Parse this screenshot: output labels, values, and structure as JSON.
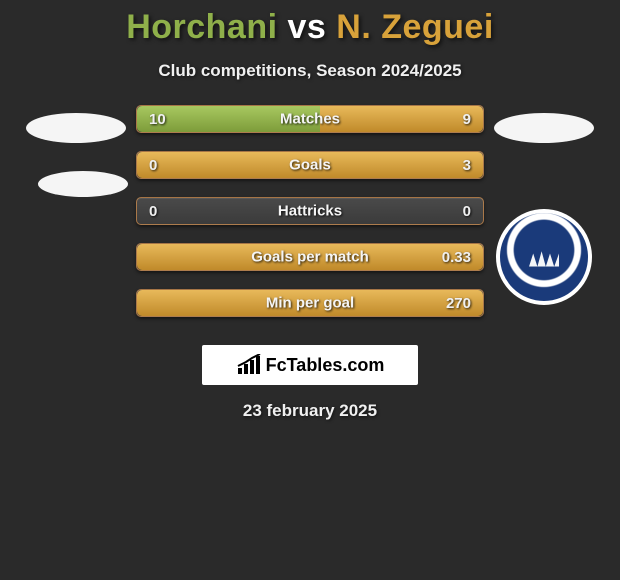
{
  "title_left": "Horchani",
  "title_mid": " vs ",
  "title_right": "N. Zeguei",
  "title_color_left": "#8fb04a",
  "title_color_right": "#d8a23a",
  "subtitle": "Club competitions, Season 2024/2025",
  "date": "23 february 2025",
  "brand": "FcTables.com",
  "bars": [
    {
      "label": "Matches",
      "left": "10",
      "right": "9",
      "left_pct": 53,
      "right_pct": 47
    },
    {
      "label": "Goals",
      "left": "0",
      "right": "3",
      "left_pct": 0,
      "right_pct": 100
    },
    {
      "label": "Hattricks",
      "left": "0",
      "right": "0",
      "left_pct": 0,
      "right_pct": 0
    },
    {
      "label": "Goals per match",
      "left": "",
      "right": "0.33",
      "left_pct": 0,
      "right_pct": 100
    },
    {
      "label": "Min per goal",
      "left": "",
      "right": "270",
      "left_pct": 0,
      "right_pct": 100
    }
  ],
  "style": {
    "left_fill": "linear-gradient(#a8c860, #7d9c3a)",
    "right_fill": "linear-gradient(#e8b95a, #c08a2a)",
    "bar_bg": "linear-gradient(#4a4a4a, #3b3b3b)",
    "page_bg": "#2a2a2a",
    "text_color": "#f0f0f0"
  }
}
